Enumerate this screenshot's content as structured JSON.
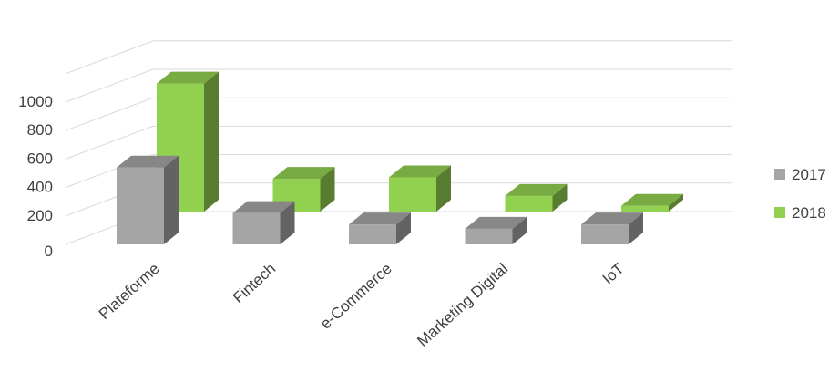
{
  "chart_data": {
    "type": "bar",
    "subtype": "3d-clustered-column",
    "categories": [
      "Plateforme",
      "Fintech",
      "e-Commerce",
      "Marketing Digital",
      "IoT"
    ],
    "series": [
      {
        "name": "2017",
        "values": [
          540,
          220,
          140,
          110,
          140
        ],
        "color": "#a5a5a5"
      },
      {
        "name": "2018",
        "values": [
          900,
          230,
          240,
          110,
          40
        ],
        "color": "#92d050"
      }
    ],
    "yticks": [
      0,
      200,
      400,
      600,
      800,
      1000
    ],
    "ylim": [
      0,
      1200
    ],
    "grid": true,
    "legend_position": "right",
    "title": "",
    "xlabel": "",
    "ylabel": ""
  }
}
